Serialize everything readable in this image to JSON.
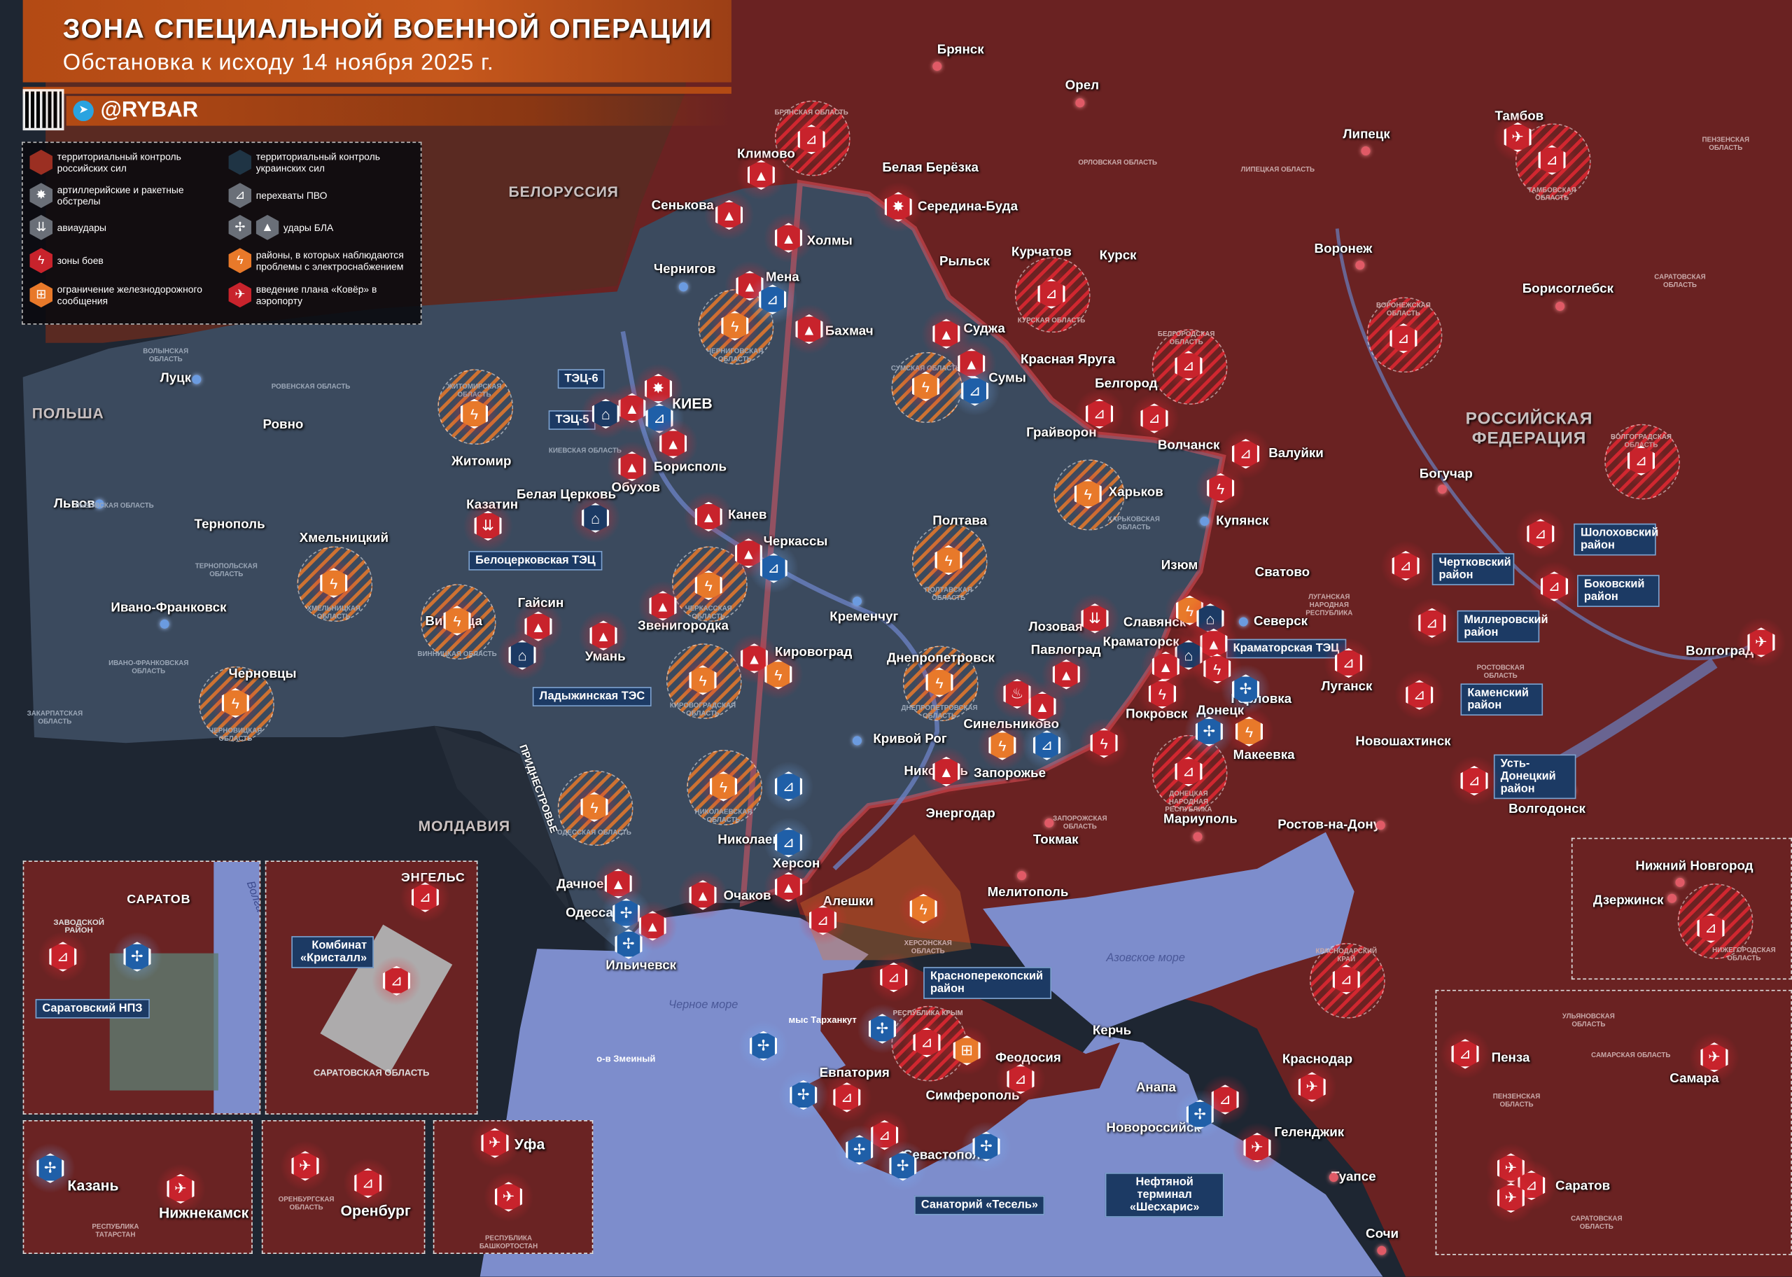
{
  "header": {
    "title": "ЗОНА СПЕЦИАЛЬНОЙ ВОЕННОЙ ОПЕРАЦИИ",
    "subtitle": "Обстановка к исходу 14 ноября 2025 г.",
    "brand": "@RYBAR",
    "brand_icon": "telegram-icon",
    "qr_icon": "qr-code-icon"
  },
  "colors": {
    "russian_control": "#6a2222",
    "ukrainian_control": "#3b4a5e",
    "sea": "#7d8dcc",
    "combat": "#c8232c",
    "power_outage": "#e8792a",
    "interception": "#1f5fa8",
    "header": "#b34a14"
  },
  "legend": [
    {
      "label": "территориальный контроль российских сил",
      "icon": "russian-control-hex-icon"
    },
    {
      "label": "территориальный контроль украинских сил",
      "icon": "ukrainian-control-hex-icon"
    },
    {
      "label": "артиллерийские и ракетные обстрелы",
      "icon": "explosion-icon"
    },
    {
      "label": "перехваты ПВО",
      "icon": "air-defense-launcher-icon"
    },
    {
      "label": "авиаудары",
      "icon": "bombs-icon"
    },
    {
      "label": "удары БЛА",
      "icon": "drone-icon"
    },
    {
      "label": "зоны боев",
      "icon": "lightning-icon"
    },
    {
      "label": "районы, в которых наблюдаются проблемы с электроснабжением",
      "icon": "power-outage-icon"
    },
    {
      "label": "ограничение железнодорожного сообщения",
      "icon": "train-restricted-icon"
    },
    {
      "label": "введение плана «Ковёр» в аэропорту",
      "icon": "airport-closed-icon"
    }
  ],
  "countries": [
    "БЕЛОРУССИЯ",
    "ПОЛЬША",
    "МОЛДАВИЯ",
    "РОССИЙСКАЯ ФЕДЕРАЦИЯ",
    "ПРИДНЕСТРОВЬЕ"
  ],
  "seas": [
    "Черное море",
    "Азовское море",
    "о-в Змеиный",
    "мыс Тарханкут"
  ],
  "cities": [
    "Брянск",
    "Орел",
    "Липецк",
    "Тамбов",
    "Климово",
    "Белая Берёзка",
    "Сенькова",
    "Середина-Буда",
    "Холмы",
    "Курчатов",
    "Курск",
    "Воронеж",
    "Рыльск",
    "Чернигов",
    "Мена",
    "Борисоглебск",
    "Бахмач",
    "Суджа",
    "Красная Яруга",
    "Луцк",
    "Сумы",
    "Белгород",
    "Ровно",
    "КИЕВ",
    "Житомир",
    "Грайворон",
    "Борисполь",
    "Волчанск",
    "Валуйки",
    "Обухов",
    "Львов",
    "Казатин",
    "Белая Церковь",
    "Харьков",
    "Канев",
    "Богучар",
    "Купянск",
    "Тернополь",
    "Хмельницкий",
    "Полтава",
    "Черкассы",
    "Изюм",
    "Сватово",
    "Ивано-Франковск",
    "Винница",
    "Гайсин",
    "Звенигородка",
    "Кременчуг",
    "Славянск",
    "Северск",
    "Лозовая",
    "Краматорск",
    "Умань",
    "Кировоград",
    "Днепропетровск",
    "Павлоград",
    "Луганск",
    "Волгоград",
    "Черновцы",
    "Горловка",
    "Донецк",
    "Покровск",
    "Синельниково",
    "Кривой Рог",
    "Новошахтинск",
    "Макеевка",
    "Никополь",
    "Запорожье",
    "Энергодар",
    "Волгодонск",
    "Мариуполь",
    "Ростов-на-Дону",
    "Токмак",
    "Николаев",
    "Херсон",
    "Мелитополь",
    "Дачное",
    "Очаков",
    "Алешки",
    "Одесса",
    "Ильичевск",
    "Керчь",
    "Краснодар",
    "Феодосия",
    "Евпатория",
    "Симферополь",
    "Анапа",
    "Новороссийск",
    "Геленджик",
    "Севастополь",
    "Туапсе",
    "Сочи"
  ],
  "callouts": [
    "ТЭЦ-6",
    "ТЭЦ-5",
    "Белоцерковская ТЭЦ",
    "Ладыжинская ТЭС",
    "Краматорская ТЭЦ",
    "Чертковский район",
    "Шолоховский район",
    "Боковский район",
    "Миллеровский район",
    "Каменский район",
    "Усть-Донецкий район",
    "Красноперекопский район",
    "Санаторий «Тесель»",
    "Нефтяной терминал «Шесхарис»"
  ],
  "regions": [
    "БРЯНСКАЯ ОБЛАСТЬ",
    "ОРЛОВСКАЯ ОБЛАСТЬ",
    "КУРСКАЯ ОБЛАСТЬ",
    "БЕЛГОРОДСКАЯ ОБЛАСТЬ",
    "ВОРОНЕЖСКАЯ ОБЛАСТЬ",
    "ТАМБОВСКАЯ ОБЛАСТЬ",
    "ЛИПЕЦКАЯ ОБЛАСТЬ",
    "ПЕНЗЕНСКАЯ ОБЛАСТЬ",
    "САРАТОВСКАЯ ОБЛАСТЬ",
    "ВОЛГОГРАДСКАЯ ОБЛАСТЬ",
    "ЛУГАНСКАЯ НАРОДНАЯ РЕСПУБЛИКА",
    "ДОНЕЦКАЯ НАРОДНАЯ РЕСПУБЛИКА",
    "РОСТОВСКАЯ ОБЛАСТЬ",
    "ЗАПОРОЖСКАЯ ОБЛАСТЬ",
    "ХЕРСОНСКАЯ ОБЛАСТЬ",
    "КРАСНОДАРСКИЙ КРАЙ",
    "РЕСПУБЛИКА КРЫМ",
    "ЧЕРНИГОВСКАЯ ОБЛАСТЬ",
    "СУМСКАЯ ОБЛАСТЬ",
    "ХАРЬКОВСКАЯ ОБЛАСТЬ",
    "ПОЛТАВСКАЯ ОБЛАСТЬ",
    "ДНЕПРОПЕТРОВСКАЯ ОБЛАСТЬ",
    "КИЕВСКАЯ ОБЛАСТЬ",
    "ЖИТОМИРСКАЯ ОБЛАСТЬ",
    "ВОЛЫНСКАЯ ОБЛАСТЬ",
    "РОВЕНСКАЯ ОБЛАСТЬ",
    "ЛЬВОВСКАЯ ОБЛАСТЬ",
    "ТЕРНОПОЛЬСКАЯ ОБЛАСТЬ",
    "ХМЕЛЬНИЦКАЯ ОБЛАСТЬ",
    "ВИННИЦКАЯ ОБЛАСТЬ",
    "ЧЕРКАССКАЯ ОБЛАСТЬ",
    "КИРОВОГРАДСКАЯ ОБЛАСТЬ",
    "НИКОЛАЕВСКАЯ ОБЛАСТЬ",
    "ОДЕССКАЯ ОБЛАСТЬ",
    "ИВАНО-ФРАНКОВСКАЯ ОБЛАСТЬ",
    "ЧЕРНОВИЦКАЯ ОБЛАСТЬ",
    "ЗАКАРПАТСКАЯ ОБЛАСТЬ",
    "РЕСПУБЛИКА КРЫМ"
  ],
  "insets": {
    "saratov": {
      "city": "САРАТОВ",
      "district": "ЗАВОДСКОЙ РАЙОН",
      "river": "Волга",
      "callout": "Саратовский НПЗ"
    },
    "engels": {
      "city": "ЭНГЕЛЬС",
      "callout": "Комбинат «Кристалл»",
      "region": "САРАТОВСКАЯ ОБЛАСТЬ"
    },
    "tatarstan": {
      "city1": "Казань",
      "city2": "Нижнекамск",
      "region": "РЕСПУБЛИКА ТАТАРСТАН"
    },
    "orenburg": {
      "city": "Оренбург",
      "region": "ОРЕНБУРГСКАЯ ОБЛАСТЬ"
    },
    "ufa": {
      "city": "Уфа",
      "region": "РЕСПУБЛИКА БАШКОРТОСТАН"
    },
    "nizhny": {
      "city1": "Нижний Новгород",
      "city2": "Дзержинск",
      "region": "НИЖЕГОРОДСКАЯ ОБЛАСТЬ"
    },
    "volga": {
      "city1": "Пенза",
      "city2": "Самара",
      "city3": "Саратов",
      "region1": "УЛЬЯНОВСКАЯ ОБЛАСТЬ",
      "region2": "ПЕНЗЕНСКАЯ ОБЛАСТЬ",
      "region3": "САМАРСКАЯ ОБЛАСТЬ",
      "region4": "САРАТОВСКАЯ ОБЛАСТЬ"
    }
  },
  "marker_types": {
    "combat": "lightning-icon",
    "power": "power-outage-icon",
    "artillery": "explosion-icon",
    "drone": "drone-icon",
    "drone_quad": "drone-interception-icon",
    "pvo": "air-defense-launcher-icon",
    "pvo_blue": "air-defense-interception-icon",
    "airstrike": "bombs-icon",
    "airport": "airport-closed-icon",
    "rail": "train-restricted-icon",
    "powerplant": "power-plant-icon",
    "fire": "fire-icon"
  },
  "markers": [
    "pvo",
    "drone",
    "drone",
    "drone",
    "artillery",
    "drone",
    "pvo_blue",
    "drone",
    "power",
    "power",
    "drone",
    "pvo_blue",
    "drone",
    "pvo",
    "pvo",
    "pvo",
    "pvo",
    "pvo",
    "pvo",
    "airport",
    "pvo",
    "pvo",
    "combat",
    "power",
    "power",
    "artillery",
    "drone",
    "pvo_blue",
    "powerplant",
    "drone",
    "drone",
    "power",
    "airstrike",
    "powerplant",
    "drone",
    "drone",
    "pvo_blue",
    "power",
    "drone",
    "drone",
    "drone",
    "powerplant",
    "power",
    "power",
    "power",
    "drone",
    "power",
    "power",
    "power",
    "airstrike",
    "power",
    "powerplant",
    "drone",
    "powerplant",
    "drone",
    "combat",
    "combat",
    "drone",
    "fire",
    "drone",
    "power",
    "pvo_blue",
    "combat",
    "drone_quad",
    "power",
    "drone_quad",
    "pvo",
    "pvo",
    "pvo",
    "pvo",
    "pvo",
    "pvo",
    "pvo",
    "airport",
    "power",
    "pvo_blue",
    "power",
    "drone",
    "pvo_blue",
    "drone",
    "drone_quad",
    "drone",
    "drone_quad",
    "drone",
    "drone",
    "pvo",
    "power",
    "pvo",
    "pvo",
    "rail",
    "pvo",
    "drone_quad",
    "pvo",
    "drone_quad",
    "drone_quad",
    "pvo",
    "drone_quad",
    "drone_quad",
    "drone_quad",
    "pvo",
    "pvo",
    "airport",
    "airport",
    "pvo",
    "drone_quad",
    "pvo",
    "pvo",
    "drone_quad",
    "pvo",
    "drone_quad",
    "airport",
    "airport",
    "pvo",
    "airport",
    "airport",
    "pvo",
    "pvo",
    "airport",
    "airport",
    "pvo",
    "airport",
    "drone_quad"
  ]
}
